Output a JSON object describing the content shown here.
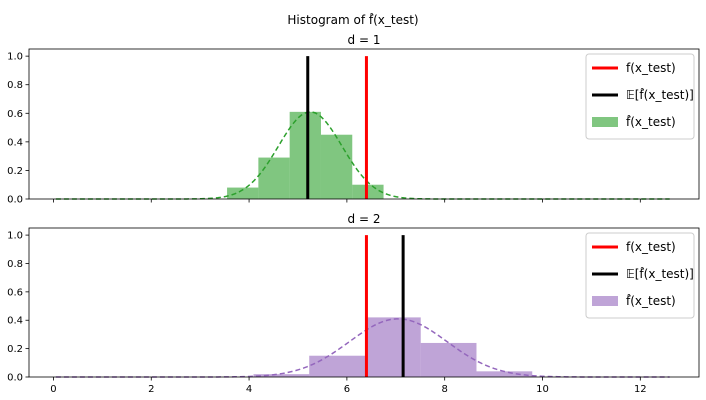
{
  "figure": {
    "suptitle": "Histogram of f̂(x_test)"
  },
  "chart_data": [
    {
      "type": "bar",
      "title": "d = 1",
      "xlabel": "",
      "ylabel": "",
      "xlim": [
        -0.5,
        13.2
      ],
      "ylim": [
        0,
        1.05
      ],
      "xticks": [],
      "yticks": [
        "0.0",
        "0.2",
        "0.4",
        "0.6",
        "0.8",
        "1.0"
      ],
      "color": "#2ca02c",
      "histogram": {
        "bin_width": 0.64,
        "bins": [
          {
            "left": 3.55,
            "value": 0.08
          },
          {
            "left": 4.19,
            "value": 0.29
          },
          {
            "left": 4.83,
            "value": 0.61
          },
          {
            "left": 5.47,
            "value": 0.45
          },
          {
            "left": 6.11,
            "value": 0.1
          }
        ]
      },
      "density_curve": {
        "mean": 5.25,
        "std": 0.65,
        "peak": 0.61,
        "x_range": [
          0.05,
          12.6
        ]
      },
      "true_value": 6.4,
      "expected_value": 5.2,
      "legend": {
        "placement": "top-right",
        "true_label": "f(x_test)",
        "expected_label": "𝔼[f̂(x_test)]",
        "hist_label": "f̂(x_test)"
      }
    },
    {
      "type": "bar",
      "title": "d = 2",
      "xlabel": "",
      "ylabel": "",
      "xlim": [
        -0.5,
        13.2
      ],
      "ylim": [
        0,
        1.05
      ],
      "xticks": [
        "0",
        "2",
        "4",
        "6",
        "8",
        "10",
        "12"
      ],
      "yticks": [
        "0.0",
        "0.2",
        "0.4",
        "0.6",
        "0.8",
        "1.0"
      ],
      "color": "#9467bd",
      "histogram": {
        "bin_width": 1.14,
        "bins": [
          {
            "left": 4.09,
            "value": 0.02
          },
          {
            "left": 5.23,
            "value": 0.15
          },
          {
            "left": 6.37,
            "value": 0.42
          },
          {
            "left": 7.51,
            "value": 0.24
          },
          {
            "left": 8.65,
            "value": 0.04
          }
        ]
      },
      "density_curve": {
        "mean": 7.05,
        "std": 1.0,
        "peak": 0.41,
        "x_range": [
          0.05,
          12.6
        ]
      },
      "true_value": 6.4,
      "expected_value": 7.15,
      "legend": {
        "placement": "top-right",
        "true_label": "f(x_test)",
        "expected_label": "𝔼[f̂(x_test)]",
        "hist_label": "f̂(x_test)"
      }
    }
  ]
}
